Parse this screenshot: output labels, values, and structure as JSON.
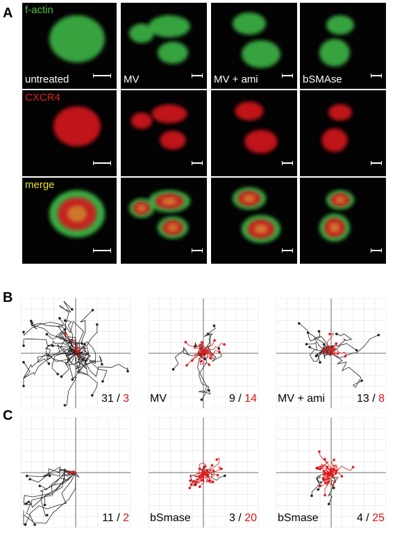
{
  "panelA": {
    "letter": "A",
    "rows": [
      {
        "label": "f-actin",
        "label_color": "#4cc04c",
        "channel": "green"
      },
      {
        "label": "CXCR4",
        "label_color": "#e02020",
        "channel": "red"
      },
      {
        "label": "merge",
        "label_color": "#e8e030",
        "channel": "merge"
      }
    ],
    "columns": [
      "untreated",
      "MV",
      "MV + ami",
      "bSMAse"
    ],
    "column_label_color": "#ffffff",
    "colors": {
      "green": "#3fbf4a",
      "red": "#d4141c",
      "merge_overlap": "#d8c83a"
    }
  },
  "panelB": {
    "letter": "B",
    "plots": [
      {
        "condition": "",
        "black_count": "31",
        "red_count": "3"
      },
      {
        "condition": "MV",
        "black_count": "9",
        "red_count": "14"
      },
      {
        "condition": "MV + ami",
        "black_count": "13",
        "red_count": "8"
      }
    ]
  },
  "panelC": {
    "letter": "C",
    "plots": [
      {
        "condition": "",
        "black_count": "11",
        "red_count": "2"
      },
      {
        "condition": "bSmase",
        "black_count": "3",
        "red_count": "20"
      },
      {
        "condition": "bSmase",
        "black_count": "4",
        "red_count": "25"
      }
    ]
  },
  "separator": "/",
  "track_colors": {
    "black": "#222222",
    "red": "#e01818"
  }
}
